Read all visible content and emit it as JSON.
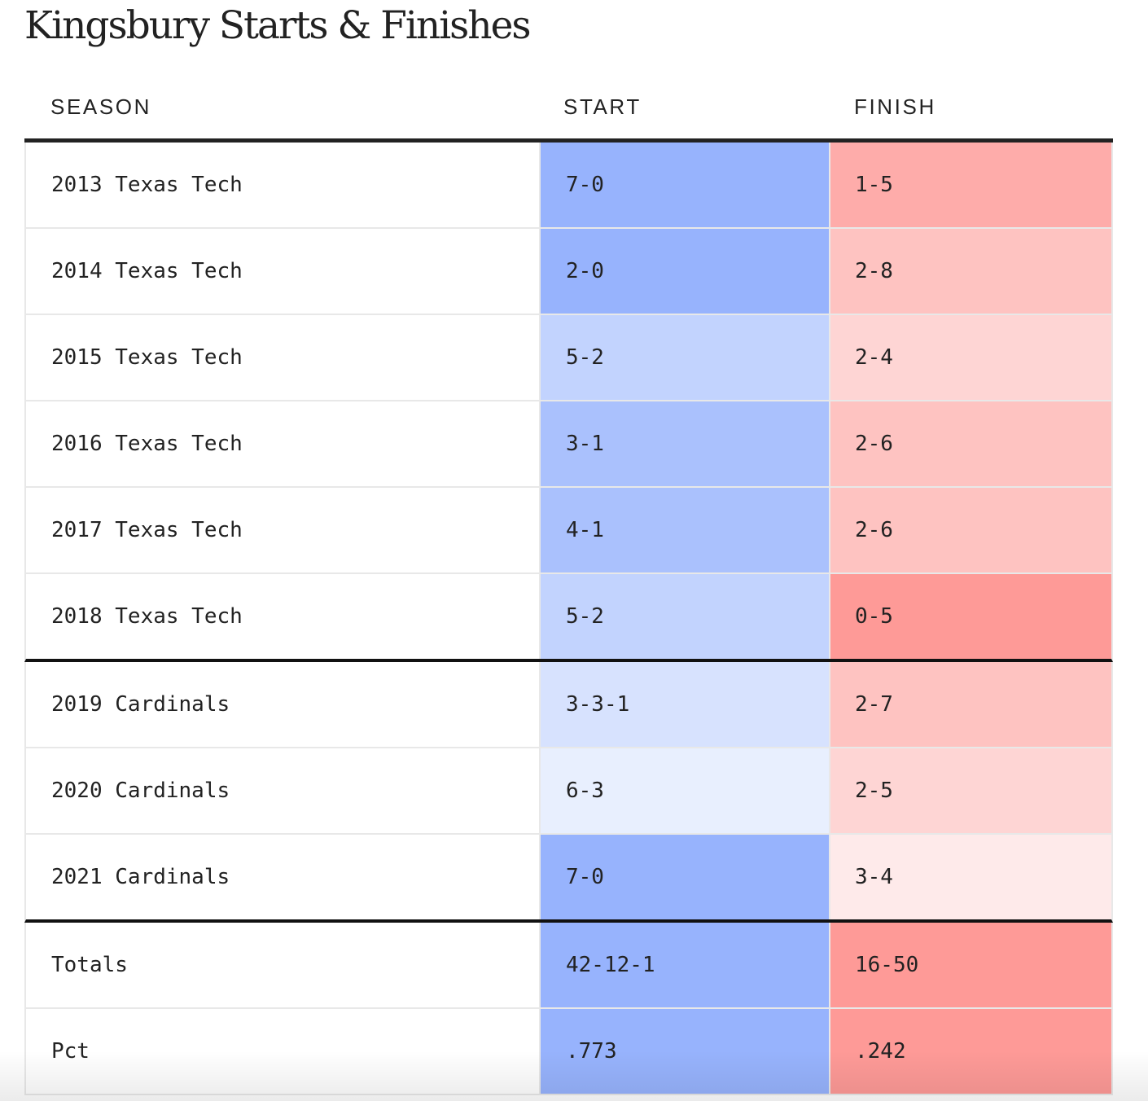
{
  "title": "Kingsbury Starts & Finishes",
  "columns": {
    "season": "SEASON",
    "start": "START",
    "finish": "FINISH"
  },
  "colors": {
    "start_darkest": "#97b3fd",
    "start_dark": "#aac1fd",
    "start_mid": "#c2d3fe",
    "start_light": "#d7e2fe",
    "start_lightest": "#e8effe",
    "finish_darkest": "#fe9a97",
    "finish_dark": "#feacaa",
    "finish_mid": "#fec3c1",
    "finish_light": "#fed5d4",
    "finish_lightest": "#feeaea",
    "rule": "#222222"
  },
  "chart_data": {
    "type": "table",
    "title": "Kingsbury Starts & Finishes",
    "columns": [
      "SEASON",
      "START",
      "FINISH"
    ],
    "rows": [
      {
        "season": "2013 Texas Tech",
        "start": "7-0",
        "finish": "1-5",
        "start_shade": "start_darkest",
        "finish_shade": "finish_dark",
        "group_end": false
      },
      {
        "season": "2014 Texas Tech",
        "start": "2-0",
        "finish": "2-8",
        "start_shade": "start_darkest",
        "finish_shade": "finish_mid",
        "group_end": false
      },
      {
        "season": "2015 Texas Tech",
        "start": "5-2",
        "finish": "2-4",
        "start_shade": "start_mid",
        "finish_shade": "finish_light",
        "group_end": false
      },
      {
        "season": "2016 Texas Tech",
        "start": "3-1",
        "finish": "2-6",
        "start_shade": "start_dark",
        "finish_shade": "finish_mid",
        "group_end": false
      },
      {
        "season": "2017 Texas Tech",
        "start": "4-1",
        "finish": "2-6",
        "start_shade": "start_dark",
        "finish_shade": "finish_mid",
        "group_end": false
      },
      {
        "season": "2018 Texas Tech",
        "start": "5-2",
        "finish": "0-5",
        "start_shade": "start_mid",
        "finish_shade": "finish_darkest",
        "group_end": true
      },
      {
        "season": "2019 Cardinals",
        "start": "3-3-1",
        "finish": "2-7",
        "start_shade": "start_light",
        "finish_shade": "finish_mid",
        "group_end": false
      },
      {
        "season": "2020 Cardinals",
        "start": "6-3",
        "finish": "2-5",
        "start_shade": "start_lightest",
        "finish_shade": "finish_light",
        "group_end": false
      },
      {
        "season": "2021 Cardinals",
        "start": "7-0",
        "finish": "3-4",
        "start_shade": "start_darkest",
        "finish_shade": "finish_lightest",
        "group_end": true
      },
      {
        "season": "Totals",
        "start": "42-12-1",
        "finish": "16-50",
        "start_shade": "start_darkest",
        "finish_shade": "finish_darkest",
        "group_end": false
      },
      {
        "season": "Pct",
        "start": ".773",
        "finish": ".242",
        "start_shade": "start_darkest",
        "finish_shade": "finish_darkest",
        "group_end": false
      }
    ]
  }
}
